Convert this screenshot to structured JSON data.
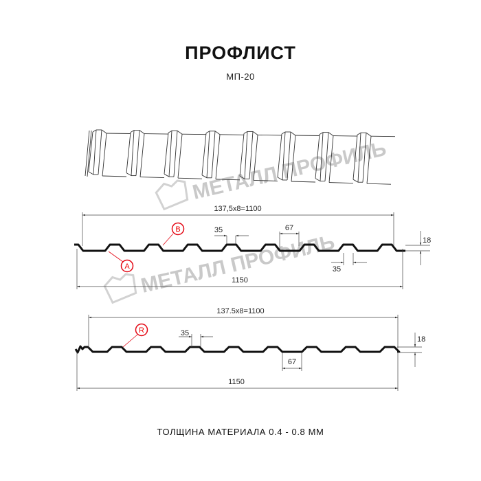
{
  "title": "ПРОФЛИСТ",
  "subtitle": "МП-20",
  "footer": "ТОЛЩИНА МАТЕРИАЛА 0.4 - 0.8 ММ",
  "watermark": "МЕТАЛЛ ПРОФИЛЬ",
  "colors": {
    "profile": "#111111",
    "marker": "#e30613",
    "watermark": "#c9c9c9",
    "dimension": "#333333"
  },
  "profile_a": {
    "pitch_label": "137,5x8=1100",
    "width_label": "1150",
    "rib_top_label": "35",
    "rib_bottom_label": "35",
    "rib_span_label": "67",
    "height_label": "18",
    "marker_b": "B",
    "marker_a": "A"
  },
  "profile_b": {
    "pitch_label": "137.5x8=1100",
    "width_label": "1150",
    "rib_top_label": "35",
    "rib_span_label": "67",
    "height_label": "18",
    "marker_r": "R"
  }
}
